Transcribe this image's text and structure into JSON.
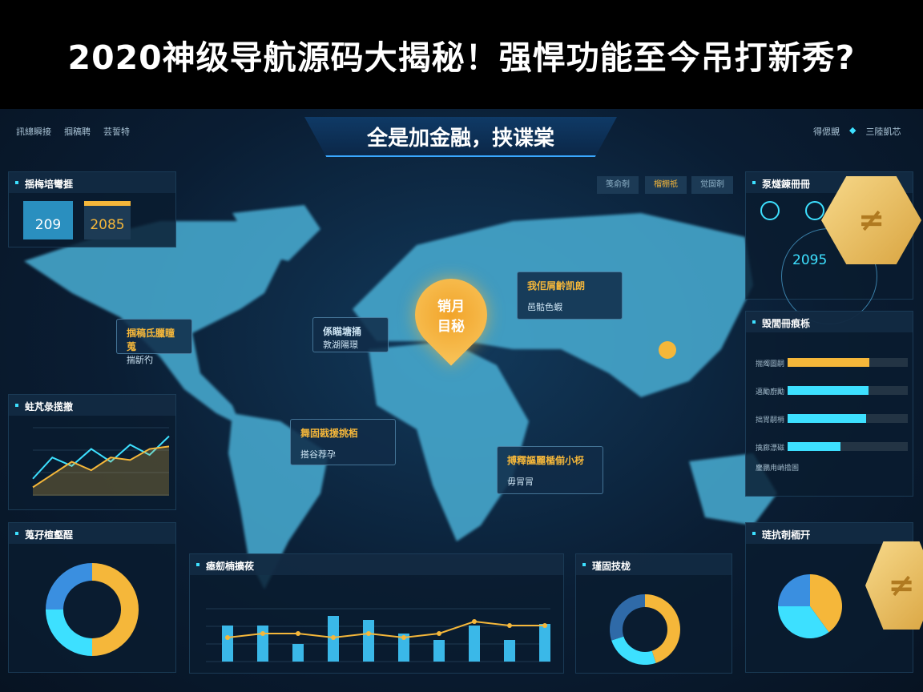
{
  "title": "2020神级导航源码大揭秘！强悍功能至今吊打新秀?",
  "header": {
    "center_title": "全是加金融，挟谍棠",
    "left_tabs": [
      "訊總瞬接",
      "掴稿聘",
      "芸誓特"
    ],
    "right_items": [
      "得偲覬",
      "三陸凱芯"
    ]
  },
  "map": {
    "buttons": [
      "笺俞剞",
      "榴棚祇",
      "觉固剞"
    ],
    "pin": "销月\n目秘",
    "colors": {
      "land": "#4fb4d8",
      "accent": "#f5b73a",
      "cyan": "#3de0ff"
    },
    "cards": [
      {
        "title": "掴稿氐臘瞳蒐",
        "value": "揣龂彴"
      },
      {
        "title": "係瞄塘捅",
        "value": "敦湖陽璟"
      },
      {
        "title": "我佢屑齡凯朗",
        "value": "邑骷色蝦"
      },
      {
        "title": "舞固戡援挑栢",
        "value": "搭谷荐孕"
      },
      {
        "title": "搏釋謳麗楯偂小枒",
        "value": "毋冐冐"
      }
    ]
  },
  "left_top": {
    "title": "揺梅培彎捱",
    "stats": [
      {
        "value": "209"
      },
      {
        "value": "2085"
      }
    ]
  },
  "left_mid": {
    "title": "蛀芃彔揽撤"
  },
  "left_bottom": {
    "title": "蒐孖楦壑酲"
  },
  "right_top": {
    "title": "泵燧錬冊冊",
    "value": "2095"
  },
  "right_mid": {
    "title": "毁閭冊痕栎",
    "bars": [
      {
        "label": "揣燭圖嗣",
        "progress": 0.68,
        "color": "#f5b73a"
      },
      {
        "label": "邁勵廚勵",
        "progress": 0.67,
        "color": "#3de0ff"
      },
      {
        "label": "拙胃嗣梢",
        "progress": 0.65,
        "color": "#3de0ff"
      },
      {
        "label": "擒廊漂磁",
        "progress": 0.44,
        "color": "#3de0ff"
      }
    ],
    "footer": "鏖鵬甪峭擔圄"
  },
  "bottom_center": {
    "title": "瘗劎楠擴莜"
  },
  "bottom_mid2": {
    "title": "瑾固技栊"
  },
  "bottom_right": {
    "title": "琏抗剞栭幵"
  },
  "chart_data": [
    {
      "type": "line",
      "series": [
        {
          "values": [
            20,
            45,
            35,
            55,
            40,
            60,
            48,
            70
          ]
        },
        {
          "values": [
            10,
            25,
            40,
            30,
            45,
            42,
            55,
            58
          ]
        }
      ],
      "ylim": [
        0,
        80
      ],
      "grid": true
    },
    {
      "type": "bar",
      "values": [
        45,
        45,
        22,
        57,
        52,
        35,
        27,
        45,
        27,
        47
      ],
      "line": [
        30,
        35,
        35,
        30,
        35,
        30,
        35,
        50,
        45,
        45
      ],
      "ylim": [
        0,
        70
      ],
      "grid": true
    },
    {
      "type": "pie",
      "donut": true,
      "values": [
        50,
        25,
        25
      ],
      "colors": [
        "#f5b73a",
        "#3de0ff",
        "#3a8fe0"
      ]
    },
    {
      "type": "pie",
      "donut": true,
      "values": [
        45,
        25,
        30
      ],
      "colors": [
        "#f5b73a",
        "#3de0ff",
        "#2f6aa8"
      ]
    },
    {
      "type": "pie",
      "values": [
        40,
        35,
        25
      ],
      "colors": [
        "#f5b73a",
        "#3de0ff",
        "#3a8fe0"
      ]
    }
  ]
}
